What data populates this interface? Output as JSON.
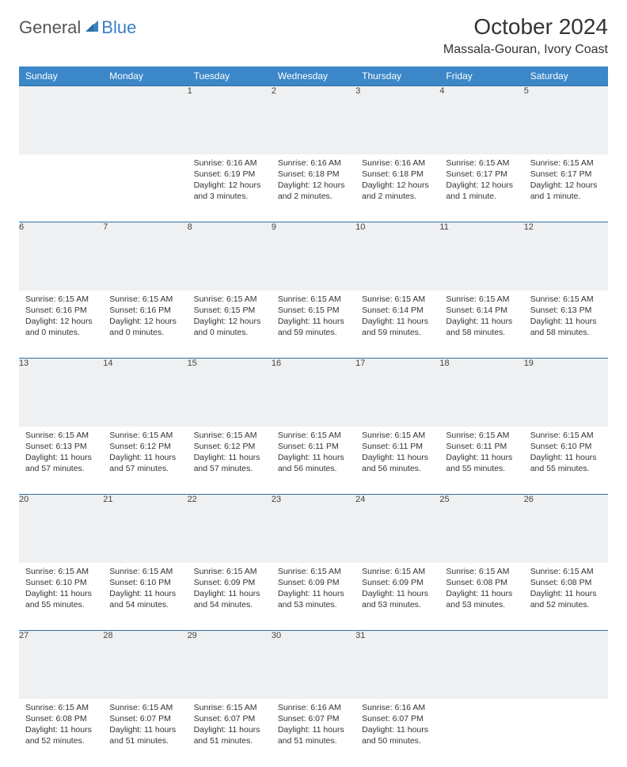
{
  "brand": {
    "part1": "General",
    "part2": "Blue"
  },
  "title": "October 2024",
  "location": "Massala-Gouran, Ivory Coast",
  "colors": {
    "header_bg": "#3b87c8",
    "header_text": "#ffffff",
    "row_band": "#eef0f2",
    "rule": "#2f6fa3",
    "text": "#333333",
    "logo_gray": "#555555",
    "logo_blue": "#3b7fc4"
  },
  "day_headers": [
    "Sunday",
    "Monday",
    "Tuesday",
    "Wednesday",
    "Thursday",
    "Friday",
    "Saturday"
  ],
  "weeks": [
    [
      null,
      null,
      {
        "n": "1",
        "sr": "6:16 AM",
        "ss": "6:19 PM",
        "dl": "12 hours and 3 minutes."
      },
      {
        "n": "2",
        "sr": "6:16 AM",
        "ss": "6:18 PM",
        "dl": "12 hours and 2 minutes."
      },
      {
        "n": "3",
        "sr": "6:16 AM",
        "ss": "6:18 PM",
        "dl": "12 hours and 2 minutes."
      },
      {
        "n": "4",
        "sr": "6:15 AM",
        "ss": "6:17 PM",
        "dl": "12 hours and 1 minute."
      },
      {
        "n": "5",
        "sr": "6:15 AM",
        "ss": "6:17 PM",
        "dl": "12 hours and 1 minute."
      }
    ],
    [
      {
        "n": "6",
        "sr": "6:15 AM",
        "ss": "6:16 PM",
        "dl": "12 hours and 0 minutes."
      },
      {
        "n": "7",
        "sr": "6:15 AM",
        "ss": "6:16 PM",
        "dl": "12 hours and 0 minutes."
      },
      {
        "n": "8",
        "sr": "6:15 AM",
        "ss": "6:15 PM",
        "dl": "12 hours and 0 minutes."
      },
      {
        "n": "9",
        "sr": "6:15 AM",
        "ss": "6:15 PM",
        "dl": "11 hours and 59 minutes."
      },
      {
        "n": "10",
        "sr": "6:15 AM",
        "ss": "6:14 PM",
        "dl": "11 hours and 59 minutes."
      },
      {
        "n": "11",
        "sr": "6:15 AM",
        "ss": "6:14 PM",
        "dl": "11 hours and 58 minutes."
      },
      {
        "n": "12",
        "sr": "6:15 AM",
        "ss": "6:13 PM",
        "dl": "11 hours and 58 minutes."
      }
    ],
    [
      {
        "n": "13",
        "sr": "6:15 AM",
        "ss": "6:13 PM",
        "dl": "11 hours and 57 minutes."
      },
      {
        "n": "14",
        "sr": "6:15 AM",
        "ss": "6:12 PM",
        "dl": "11 hours and 57 minutes."
      },
      {
        "n": "15",
        "sr": "6:15 AM",
        "ss": "6:12 PM",
        "dl": "11 hours and 57 minutes."
      },
      {
        "n": "16",
        "sr": "6:15 AM",
        "ss": "6:11 PM",
        "dl": "11 hours and 56 minutes."
      },
      {
        "n": "17",
        "sr": "6:15 AM",
        "ss": "6:11 PM",
        "dl": "11 hours and 56 minutes."
      },
      {
        "n": "18",
        "sr": "6:15 AM",
        "ss": "6:11 PM",
        "dl": "11 hours and 55 minutes."
      },
      {
        "n": "19",
        "sr": "6:15 AM",
        "ss": "6:10 PM",
        "dl": "11 hours and 55 minutes."
      }
    ],
    [
      {
        "n": "20",
        "sr": "6:15 AM",
        "ss": "6:10 PM",
        "dl": "11 hours and 55 minutes."
      },
      {
        "n": "21",
        "sr": "6:15 AM",
        "ss": "6:10 PM",
        "dl": "11 hours and 54 minutes."
      },
      {
        "n": "22",
        "sr": "6:15 AM",
        "ss": "6:09 PM",
        "dl": "11 hours and 54 minutes."
      },
      {
        "n": "23",
        "sr": "6:15 AM",
        "ss": "6:09 PM",
        "dl": "11 hours and 53 minutes."
      },
      {
        "n": "24",
        "sr": "6:15 AM",
        "ss": "6:09 PM",
        "dl": "11 hours and 53 minutes."
      },
      {
        "n": "25",
        "sr": "6:15 AM",
        "ss": "6:08 PM",
        "dl": "11 hours and 53 minutes."
      },
      {
        "n": "26",
        "sr": "6:15 AM",
        "ss": "6:08 PM",
        "dl": "11 hours and 52 minutes."
      }
    ],
    [
      {
        "n": "27",
        "sr": "6:15 AM",
        "ss": "6:08 PM",
        "dl": "11 hours and 52 minutes."
      },
      {
        "n": "28",
        "sr": "6:15 AM",
        "ss": "6:07 PM",
        "dl": "11 hours and 51 minutes."
      },
      {
        "n": "29",
        "sr": "6:15 AM",
        "ss": "6:07 PM",
        "dl": "11 hours and 51 minutes."
      },
      {
        "n": "30",
        "sr": "6:16 AM",
        "ss": "6:07 PM",
        "dl": "11 hours and 51 minutes."
      },
      {
        "n": "31",
        "sr": "6:16 AM",
        "ss": "6:07 PM",
        "dl": "11 hours and 50 minutes."
      },
      null,
      null
    ]
  ],
  "labels": {
    "sunrise": "Sunrise:",
    "sunset": "Sunset:",
    "daylight": "Daylight:"
  }
}
